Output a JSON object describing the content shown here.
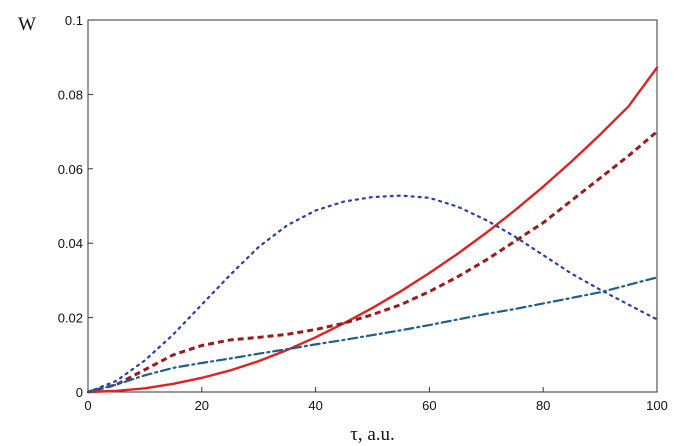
{
  "chart_data": {
    "type": "line",
    "xlabel": "τ, a.u.",
    "ylabel": "W",
    "xlim": [
      0,
      100
    ],
    "ylim": [
      0,
      0.1
    ],
    "x_ticks": [
      0,
      20,
      40,
      60,
      80,
      100
    ],
    "y_ticks": [
      0,
      0.02,
      0.04,
      0.06,
      0.08,
      0.1
    ],
    "x_tick_labels": [
      "0",
      "20",
      "40",
      "60",
      "80",
      "100"
    ],
    "y_tick_labels": [
      "0",
      "0.02",
      "0.04",
      "0.06",
      "0.08",
      "0.1"
    ],
    "grid": false,
    "legend": "none",
    "series": [
      {
        "style": "solid",
        "color": "#e02222",
        "x": [
          0,
          5,
          10,
          15,
          20,
          25,
          30,
          35,
          40,
          45,
          50,
          55,
          60,
          65,
          70,
          75,
          80,
          85,
          90,
          95,
          100
        ],
        "y": [
          0,
          0.0003,
          0.001,
          0.0022,
          0.0038,
          0.0058,
          0.0083,
          0.0113,
          0.0147,
          0.0185,
          0.0226,
          0.0271,
          0.032,
          0.0372,
          0.0428,
          0.0488,
          0.0552,
          0.062,
          0.0692,
          0.0768,
          0.0872
        ]
      },
      {
        "style": "dashed",
        "color": "#9b1b1b",
        "x": [
          0,
          5,
          10,
          15,
          20,
          25,
          30,
          35,
          40,
          45,
          50,
          55,
          60,
          65,
          70,
          75,
          80,
          85,
          90,
          95,
          100
        ],
        "y": [
          0,
          0.002,
          0.006,
          0.01,
          0.0125,
          0.014,
          0.0147,
          0.0155,
          0.0168,
          0.0185,
          0.0208,
          0.0235,
          0.027,
          0.031,
          0.0355,
          0.0405,
          0.0455,
          0.0515,
          0.0575,
          0.0635,
          0.07
        ]
      },
      {
        "style": "dotted",
        "color": "#2a3fa8",
        "x": [
          0,
          5,
          10,
          15,
          20,
          25,
          30,
          35,
          40,
          45,
          50,
          55,
          60,
          65,
          70,
          75,
          80,
          85,
          90,
          95,
          100
        ],
        "y": [
          0,
          0.003,
          0.0085,
          0.0155,
          0.0235,
          0.0315,
          0.039,
          0.0448,
          0.0488,
          0.0512,
          0.0524,
          0.0528,
          0.0522,
          0.0498,
          0.0462,
          0.0418,
          0.0368,
          0.0318,
          0.0275,
          0.0235,
          0.0195
        ]
      },
      {
        "style": "dashdot",
        "color": "#1f5f8f",
        "x": [
          0,
          5,
          10,
          15,
          20,
          25,
          30,
          35,
          40,
          45,
          50,
          55,
          60,
          65,
          70,
          75,
          80,
          85,
          90,
          95,
          100
        ],
        "y": [
          0,
          0.002,
          0.0045,
          0.0065,
          0.0078,
          0.009,
          0.0103,
          0.0115,
          0.0128,
          0.014,
          0.0153,
          0.0166,
          0.018,
          0.0195,
          0.021,
          0.0223,
          0.0238,
          0.0253,
          0.0268,
          0.0288,
          0.0308
        ]
      }
    ]
  }
}
